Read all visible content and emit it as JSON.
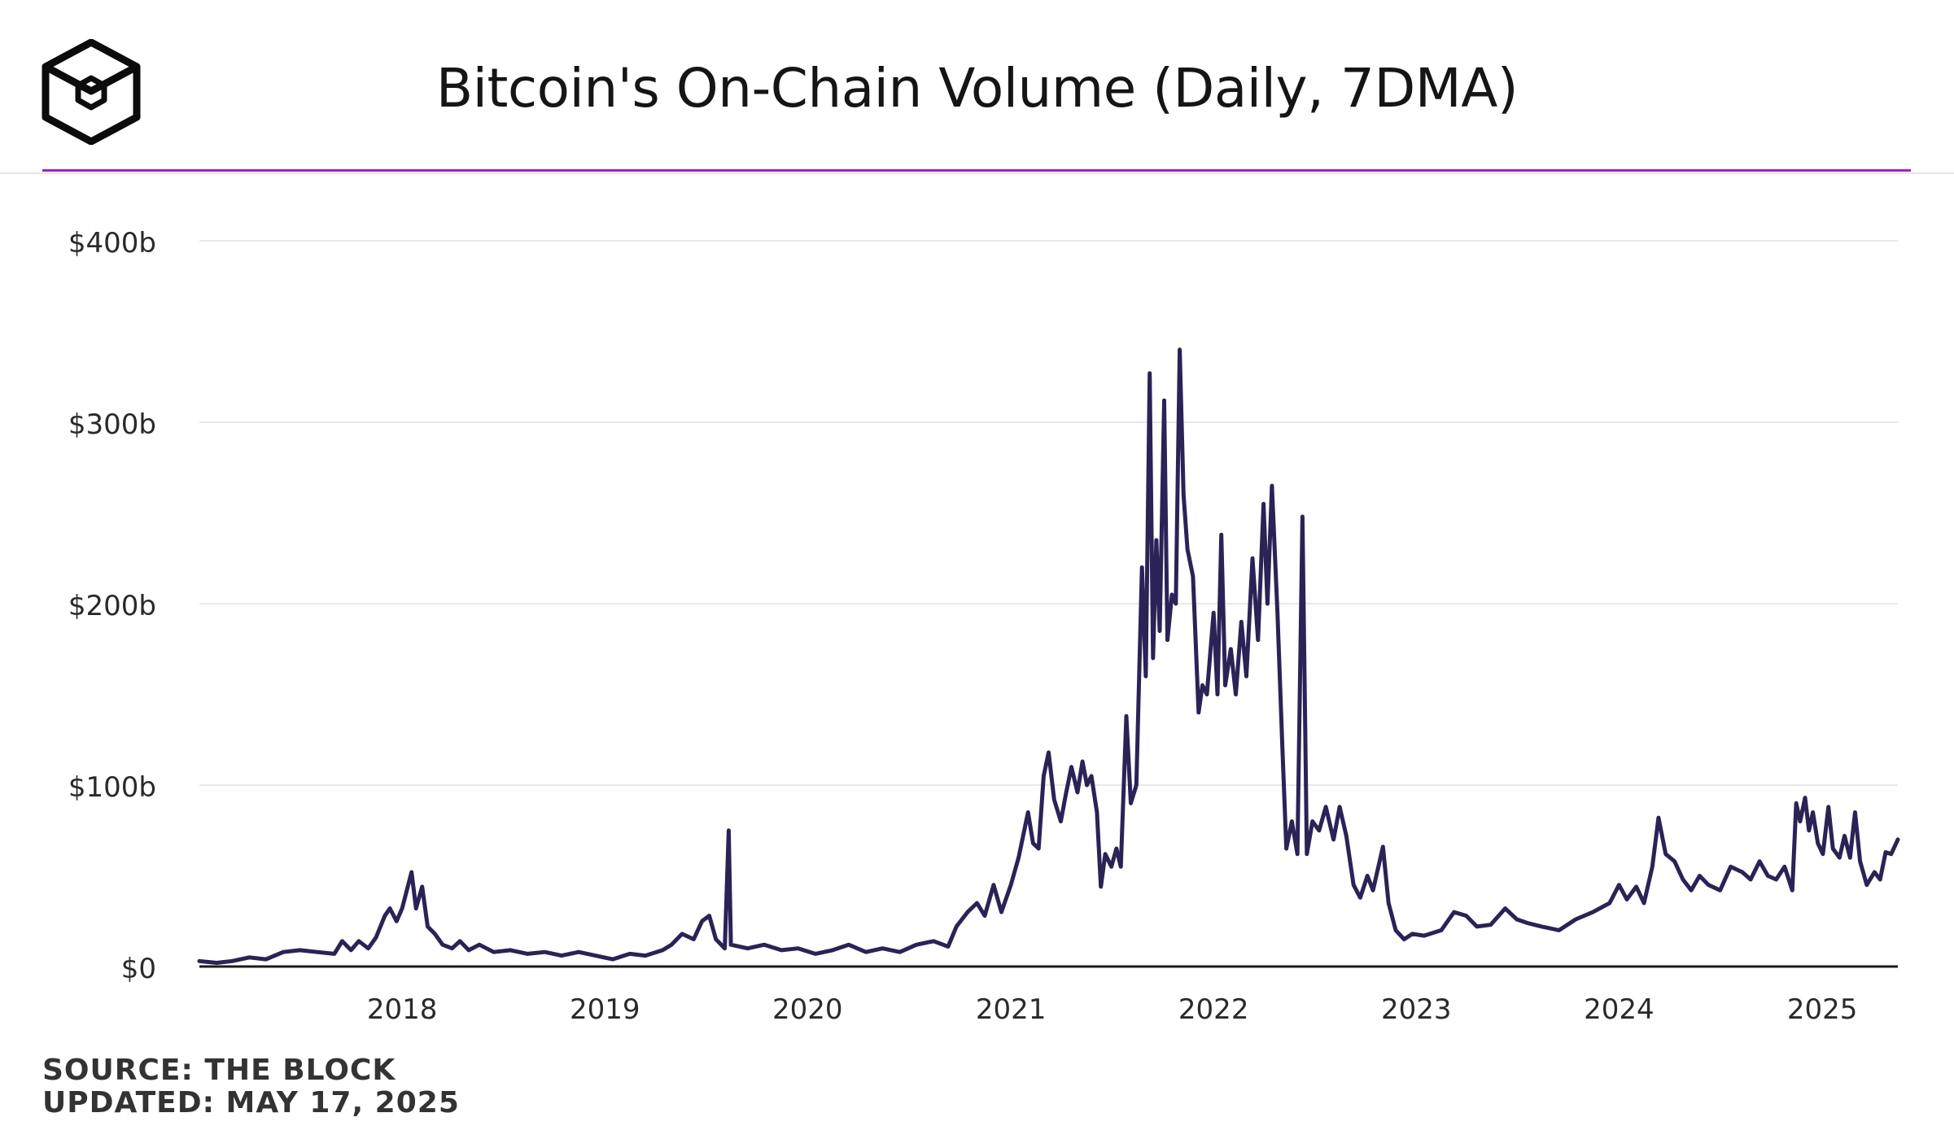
{
  "colors": {
    "accent": "#a020c8",
    "line": "#2b2356",
    "grid": "#e8e8e8",
    "axis": "#1b1b1b"
  },
  "header": {
    "logo_icon": "hexagon-cube-icon"
  },
  "footer": {
    "source": "SOURCE: THE BLOCK",
    "updated": "UPDATED: MAY 17, 2025"
  },
  "chart_data": {
    "type": "line",
    "title": "Bitcoin's On-Chain Volume (Daily, 7DMA)",
    "xlabel": "",
    "ylabel": "",
    "xlim": [
      "2017-01-01",
      "2025-05-17"
    ],
    "ylim": [
      0,
      400
    ],
    "y_unit": "billion USD",
    "y_ticks": [
      0,
      100,
      200,
      300,
      400
    ],
    "y_tick_labels": [
      "$0",
      "$100b",
      "$200b",
      "$300b",
      "$400b"
    ],
    "x_ticks": [
      "2018-01-01",
      "2019-01-01",
      "2020-01-01",
      "2021-01-01",
      "2022-01-01",
      "2023-01-01",
      "2024-01-01",
      "2025-01-01"
    ],
    "x_tick_labels": [
      "2018",
      "2019",
      "2020",
      "2021",
      "2022",
      "2023",
      "2024",
      "2025"
    ],
    "grid": true,
    "legend": "none",
    "series": [
      {
        "name": "",
        "points": [
          [
            "2017-01-01",
            3
          ],
          [
            "2017-02-01",
            2
          ],
          [
            "2017-03-01",
            3
          ],
          [
            "2017-04-01",
            5
          ],
          [
            "2017-05-01",
            4
          ],
          [
            "2017-06-01",
            8
          ],
          [
            "2017-07-01",
            9
          ],
          [
            "2017-08-01",
            8
          ],
          [
            "2017-09-01",
            7
          ],
          [
            "2017-09-15",
            14
          ],
          [
            "2017-10-01",
            9
          ],
          [
            "2017-10-15",
            14
          ],
          [
            "2017-11-01",
            10
          ],
          [
            "2017-11-15",
            16
          ],
          [
            "2017-12-01",
            28
          ],
          [
            "2017-12-10",
            32
          ],
          [
            "2017-12-22",
            25
          ],
          [
            "2018-01-01",
            32
          ],
          [
            "2018-01-12",
            45
          ],
          [
            "2018-01-18",
            52
          ],
          [
            "2018-01-26",
            32
          ],
          [
            "2018-02-06",
            44
          ],
          [
            "2018-02-16",
            22
          ],
          [
            "2018-03-01",
            18
          ],
          [
            "2018-03-15",
            12
          ],
          [
            "2018-04-01",
            10
          ],
          [
            "2018-04-15",
            14
          ],
          [
            "2018-05-01",
            9
          ],
          [
            "2018-05-20",
            12
          ],
          [
            "2018-06-15",
            8
          ],
          [
            "2018-07-15",
            9
          ],
          [
            "2018-08-15",
            7
          ],
          [
            "2018-09-15",
            8
          ],
          [
            "2018-10-15",
            6
          ],
          [
            "2018-11-15",
            8
          ],
          [
            "2018-12-15",
            6
          ],
          [
            "2019-01-15",
            4
          ],
          [
            "2019-02-15",
            7
          ],
          [
            "2019-03-15",
            6
          ],
          [
            "2019-04-15",
            9
          ],
          [
            "2019-05-01",
            12
          ],
          [
            "2019-05-20",
            18
          ],
          [
            "2019-06-10",
            15
          ],
          [
            "2019-06-25",
            25
          ],
          [
            "2019-07-08",
            28
          ],
          [
            "2019-07-20",
            15
          ],
          [
            "2019-08-05",
            10
          ],
          [
            "2019-08-12",
            75
          ],
          [
            "2019-08-16",
            12
          ],
          [
            "2019-09-15",
            10
          ],
          [
            "2019-10-15",
            12
          ],
          [
            "2019-11-15",
            9
          ],
          [
            "2019-12-15",
            10
          ],
          [
            "2020-01-15",
            7
          ],
          [
            "2020-02-15",
            9
          ],
          [
            "2020-03-15",
            12
          ],
          [
            "2020-04-15",
            8
          ],
          [
            "2020-05-15",
            10
          ],
          [
            "2020-06-15",
            8
          ],
          [
            "2020-07-15",
            12
          ],
          [
            "2020-08-15",
            14
          ],
          [
            "2020-09-10",
            11
          ],
          [
            "2020-09-25",
            22
          ],
          [
            "2020-10-15",
            30
          ],
          [
            "2020-11-01",
            35
          ],
          [
            "2020-11-15",
            28
          ],
          [
            "2020-12-01",
            45
          ],
          [
            "2020-12-15",
            30
          ],
          [
            "2021-01-01",
            45
          ],
          [
            "2021-01-15",
            60
          ],
          [
            "2021-02-01",
            85
          ],
          [
            "2021-02-10",
            68
          ],
          [
            "2021-02-20",
            65
          ],
          [
            "2021-03-01",
            105
          ],
          [
            "2021-03-10",
            118
          ],
          [
            "2021-03-20",
            92
          ],
          [
            "2021-04-01",
            80
          ],
          [
            "2021-04-10",
            95
          ],
          [
            "2021-04-20",
            110
          ],
          [
            "2021-05-01",
            96
          ],
          [
            "2021-05-10",
            113
          ],
          [
            "2021-05-18",
            100
          ],
          [
            "2021-05-26",
            105
          ],
          [
            "2021-06-05",
            85
          ],
          [
            "2021-06-12",
            44
          ],
          [
            "2021-06-20",
            62
          ],
          [
            "2021-07-01",
            55
          ],
          [
            "2021-07-10",
            65
          ],
          [
            "2021-07-18",
            55
          ],
          [
            "2021-07-28",
            138
          ],
          [
            "2021-08-05",
            90
          ],
          [
            "2021-08-15",
            100
          ],
          [
            "2021-08-25",
            220
          ],
          [
            "2021-09-01",
            160
          ],
          [
            "2021-09-08",
            327
          ],
          [
            "2021-09-14",
            170
          ],
          [
            "2021-09-20",
            235
          ],
          [
            "2021-09-26",
            185
          ],
          [
            "2021-10-04",
            312
          ],
          [
            "2021-10-10",
            180
          ],
          [
            "2021-10-18",
            205
          ],
          [
            "2021-10-25",
            200
          ],
          [
            "2021-11-01",
            340
          ],
          [
            "2021-11-08",
            260
          ],
          [
            "2021-11-15",
            230
          ],
          [
            "2021-11-25",
            215
          ],
          [
            "2021-12-05",
            140
          ],
          [
            "2021-12-12",
            155
          ],
          [
            "2021-12-20",
            150
          ],
          [
            "2022-01-01",
            195
          ],
          [
            "2022-01-08",
            150
          ],
          [
            "2022-01-15",
            238
          ],
          [
            "2022-01-22",
            155
          ],
          [
            "2022-02-01",
            175
          ],
          [
            "2022-02-10",
            150
          ],
          [
            "2022-02-20",
            190
          ],
          [
            "2022-03-01",
            160
          ],
          [
            "2022-03-12",
            225
          ],
          [
            "2022-03-22",
            180
          ],
          [
            "2022-04-01",
            255
          ],
          [
            "2022-04-08",
            200
          ],
          [
            "2022-04-16",
            265
          ],
          [
            "2022-04-26",
            195
          ],
          [
            "2022-05-05",
            120
          ],
          [
            "2022-05-12",
            65
          ],
          [
            "2022-05-22",
            80
          ],
          [
            "2022-06-01",
            62
          ],
          [
            "2022-06-10",
            248
          ],
          [
            "2022-06-18",
            62
          ],
          [
            "2022-06-28",
            80
          ],
          [
            "2022-07-10",
            75
          ],
          [
            "2022-07-22",
            88
          ],
          [
            "2022-08-05",
            70
          ],
          [
            "2022-08-16",
            88
          ],
          [
            "2022-08-28",
            72
          ],
          [
            "2022-09-10",
            45
          ],
          [
            "2022-09-22",
            38
          ],
          [
            "2022-10-05",
            50
          ],
          [
            "2022-10-15",
            42
          ],
          [
            "2022-11-02",
            66
          ],
          [
            "2022-11-12",
            35
          ],
          [
            "2022-11-25",
            20
          ],
          [
            "2022-12-10",
            15
          ],
          [
            "2022-12-25",
            18
          ],
          [
            "2023-01-15",
            17
          ],
          [
            "2023-02-15",
            20
          ],
          [
            "2023-03-10",
            30
          ],
          [
            "2023-04-01",
            28
          ],
          [
            "2023-04-20",
            22
          ],
          [
            "2023-05-15",
            23
          ],
          [
            "2023-06-10",
            32
          ],
          [
            "2023-07-01",
            26
          ],
          [
            "2023-07-20",
            24
          ],
          [
            "2023-08-15",
            22
          ],
          [
            "2023-09-15",
            20
          ],
          [
            "2023-10-15",
            26
          ],
          [
            "2023-11-15",
            30
          ],
          [
            "2023-12-15",
            35
          ],
          [
            "2024-01-01",
            45
          ],
          [
            "2024-01-15",
            37
          ],
          [
            "2024-02-01",
            44
          ],
          [
            "2024-02-15",
            35
          ],
          [
            "2024-03-01",
            55
          ],
          [
            "2024-03-12",
            82
          ],
          [
            "2024-03-25",
            62
          ],
          [
            "2024-04-10",
            58
          ],
          [
            "2024-04-25",
            48
          ],
          [
            "2024-05-10",
            42
          ],
          [
            "2024-05-25",
            50
          ],
          [
            "2024-06-10",
            45
          ],
          [
            "2024-07-01",
            42
          ],
          [
            "2024-07-20",
            55
          ],
          [
            "2024-08-10",
            52
          ],
          [
            "2024-08-25",
            48
          ],
          [
            "2024-09-10",
            58
          ],
          [
            "2024-09-25",
            50
          ],
          [
            "2024-10-10",
            48
          ],
          [
            "2024-10-25",
            55
          ],
          [
            "2024-11-08",
            42
          ],
          [
            "2024-11-15",
            90
          ],
          [
            "2024-11-22",
            80
          ],
          [
            "2024-12-01",
            93
          ],
          [
            "2024-12-08",
            75
          ],
          [
            "2024-12-15",
            85
          ],
          [
            "2024-12-24",
            68
          ],
          [
            "2025-01-02",
            62
          ],
          [
            "2025-01-12",
            88
          ],
          [
            "2025-01-20",
            65
          ],
          [
            "2025-02-01",
            60
          ],
          [
            "2025-02-10",
            72
          ],
          [
            "2025-02-20",
            60
          ],
          [
            "2025-03-01",
            85
          ],
          [
            "2025-03-10",
            58
          ],
          [
            "2025-03-22",
            45
          ],
          [
            "2025-04-05",
            52
          ],
          [
            "2025-04-15",
            48
          ],
          [
            "2025-04-25",
            63
          ],
          [
            "2025-05-05",
            62
          ],
          [
            "2025-05-17",
            70
          ]
        ]
      }
    ]
  }
}
